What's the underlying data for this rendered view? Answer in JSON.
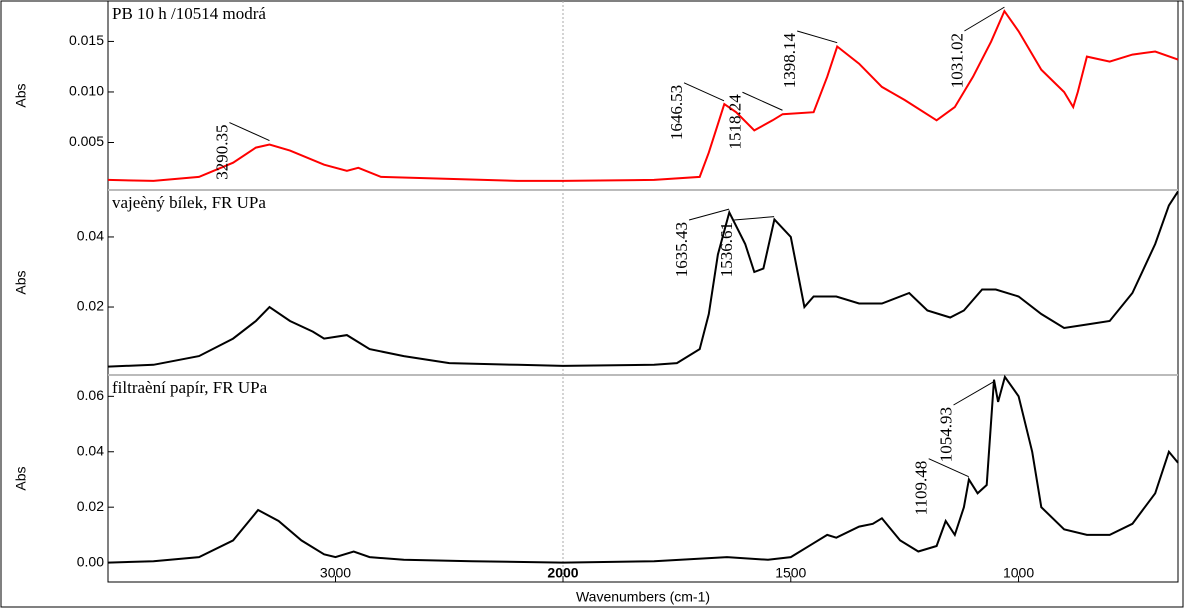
{
  "x_axis": {
    "label": "Wavenumbers (cm-1)",
    "xlim": [
      4000,
      650
    ],
    "xticks": [
      3000,
      2000,
      1500,
      1000
    ],
    "scale_break": 2000
  },
  "chart_data": [
    {
      "type": "line",
      "title": "PB 10 h /10514 modrá",
      "ylabel": "Abs",
      "color": "#ff0000",
      "ylim": [
        0.0003,
        0.019
      ],
      "yticks": [
        0.005,
        {
          "value": 0.01,
          "label": "0.010"
        },
        0.015
      ],
      "x": [
        4000,
        3800,
        3600,
        3450,
        3350,
        3290,
        3200,
        3050,
        2950,
        2900,
        2800,
        2500,
        2200,
        2000,
        1800,
        1700,
        1680,
        1646,
        1620,
        1580,
        1540,
        1518,
        1450,
        1420,
        1398,
        1350,
        1300,
        1250,
        1180,
        1140,
        1100,
        1060,
        1031,
        1000,
        950,
        900,
        880,
        870,
        850,
        800,
        750,
        700,
        650
      ],
      "values": [
        0.0013,
        0.0012,
        0.0016,
        0.003,
        0.0045,
        0.0048,
        0.0042,
        0.0028,
        0.0022,
        0.0025,
        0.0016,
        0.0014,
        0.0012,
        0.0012,
        0.0013,
        0.0016,
        0.004,
        0.0088,
        0.008,
        0.0062,
        0.0072,
        0.0078,
        0.008,
        0.0115,
        0.0145,
        0.0128,
        0.0105,
        0.0092,
        0.0072,
        0.0085,
        0.0115,
        0.015,
        0.018,
        0.016,
        0.0122,
        0.01,
        0.0085,
        0.01,
        0.0135,
        0.013,
        0.0137,
        0.014,
        0.0132
      ],
      "peaks": [
        3290.35,
        1646.53,
        1518.24,
        1398.14,
        1031.02
      ]
    },
    {
      "type": "line",
      "title": "vajeèný bílek, FR UPa",
      "ylabel": "Abs",
      "color": "#000000",
      "ylim": [
        0.0006,
        0.0534
      ],
      "yticks": [
        0.04,
        0.02
      ],
      "x": [
        4000,
        3800,
        3600,
        3450,
        3350,
        3290,
        3200,
        3100,
        3050,
        2950,
        2900,
        2850,
        2700,
        2500,
        2200,
        2000,
        1800,
        1750,
        1700,
        1680,
        1660,
        1635,
        1600,
        1580,
        1560,
        1536,
        1500,
        1470,
        1450,
        1400,
        1350,
        1300,
        1240,
        1200,
        1150,
        1120,
        1080,
        1050,
        1000,
        950,
        900,
        850,
        800,
        750,
        700,
        670,
        650
      ],
      "values": [
        0.003,
        0.0035,
        0.006,
        0.011,
        0.016,
        0.02,
        0.016,
        0.013,
        0.011,
        0.012,
        0.01,
        0.008,
        0.006,
        0.004,
        0.0035,
        0.0032,
        0.0035,
        0.004,
        0.008,
        0.018,
        0.035,
        0.047,
        0.038,
        0.03,
        0.031,
        0.045,
        0.04,
        0.02,
        0.023,
        0.023,
        0.021,
        0.021,
        0.024,
        0.019,
        0.017,
        0.019,
        0.025,
        0.025,
        0.023,
        0.018,
        0.014,
        0.015,
        0.016,
        0.024,
        0.038,
        0.049,
        0.053
      ],
      "peaks": [
        1635.43,
        1536.61
      ]
    },
    {
      "type": "line",
      "title": "filtraèní papír, FR UPa",
      "ylabel": "Abs",
      "color": "#000000",
      "ylim": [
        -0.007,
        0.0677
      ],
      "yticks": [
        0.06,
        0.04,
        0.02,
        {
          "value": 0,
          "label": "0.00"
        }
      ],
      "x": [
        4000,
        3800,
        3600,
        3450,
        3380,
        3340,
        3250,
        3150,
        3050,
        3000,
        2920,
        2850,
        2700,
        2400,
        2000,
        1800,
        1640,
        1550,
        1500,
        1450,
        1420,
        1400,
        1350,
        1320,
        1300,
        1260,
        1220,
        1180,
        1160,
        1140,
        1120,
        1109,
        1090,
        1070,
        1054,
        1045,
        1030,
        1000,
        970,
        950,
        900,
        850,
        800,
        750,
        700,
        670,
        650
      ],
      "values": [
        0.0,
        0.0005,
        0.002,
        0.008,
        0.015,
        0.019,
        0.015,
        0.008,
        0.003,
        0.002,
        0.004,
        0.002,
        0.001,
        0.0005,
        0.0,
        0.0005,
        0.002,
        0.001,
        0.002,
        0.007,
        0.01,
        0.009,
        0.013,
        0.014,
        0.016,
        0.008,
        0.004,
        0.006,
        0.015,
        0.01,
        0.02,
        0.03,
        0.025,
        0.028,
        0.066,
        0.058,
        0.067,
        0.06,
        0.04,
        0.02,
        0.012,
        0.01,
        0.01,
        0.014,
        0.025,
        0.04,
        0.036
      ],
      "peaks": [
        1109.48,
        1054.93
      ]
    }
  ]
}
